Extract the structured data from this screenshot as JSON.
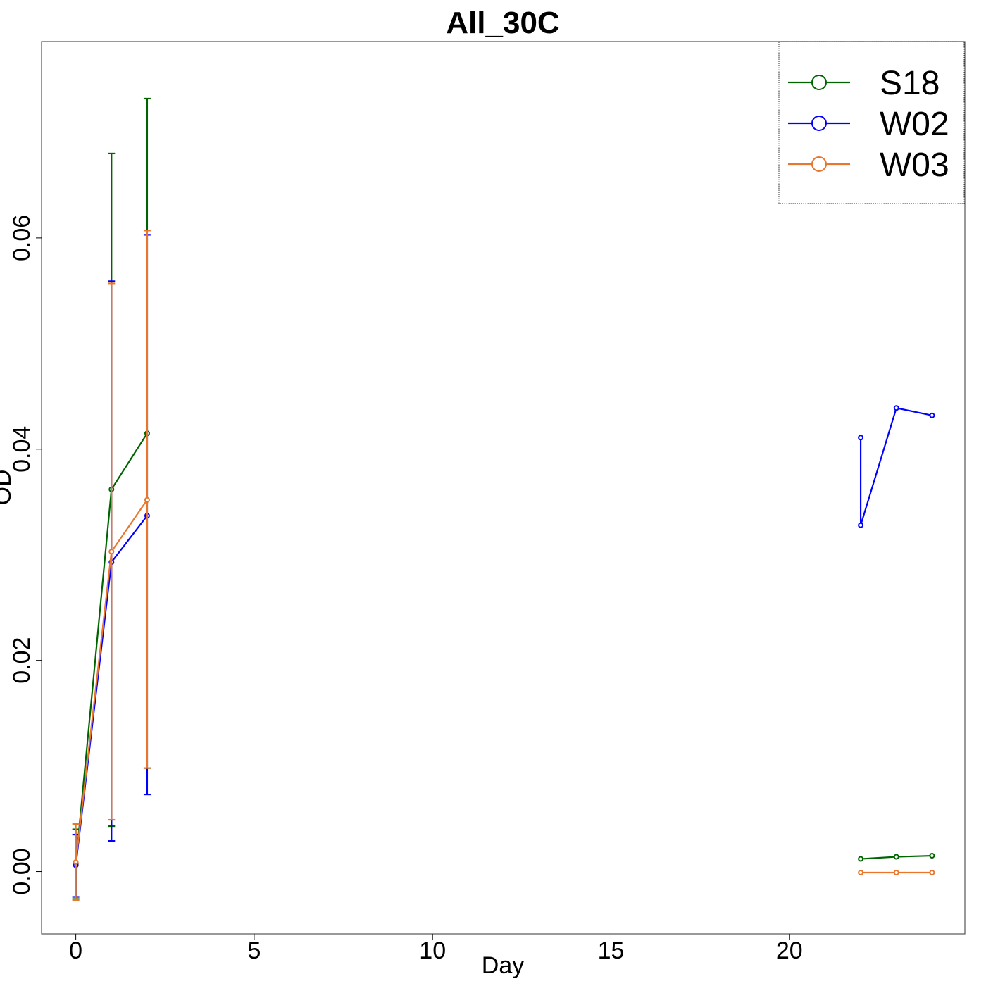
{
  "chart_data": {
    "type": "line",
    "title": "All_30C",
    "xlabel": "Day",
    "ylabel": "OD",
    "xlim": [
      -0.96,
      24.92
    ],
    "ylim": [
      -0.0059,
      0.0786
    ],
    "x_ticks": [
      0,
      5,
      10,
      15,
      20
    ],
    "y_ticks": [
      0.0,
      0.02,
      0.04,
      0.06
    ],
    "y_tick_labels": [
      "0.00",
      "0.02",
      "0.04",
      "0.06"
    ],
    "grid": false,
    "legend_position": "top-right",
    "series": [
      {
        "name": "S18",
        "color": "#006400",
        "segments": [
          {
            "points": [
              {
                "x": 0,
                "y": 0.0007,
                "err_low": -0.0026,
                "err_high": 0.004
              },
              {
                "x": 1,
                "y": 0.0362,
                "err_low": 0.0043,
                "err_high": 0.068
              },
              {
                "x": 2,
                "y": 0.0415,
                "err_low": 0.0098,
                "err_high": 0.0732
              }
            ]
          },
          {
            "points": [
              {
                "x": 22,
                "y": 0.0012
              },
              {
                "x": 23,
                "y": 0.0014
              },
              {
                "x": 24,
                "y": 0.0015
              }
            ]
          }
        ]
      },
      {
        "name": "W02",
        "color": "#0000ff",
        "segments": [
          {
            "points": [
              {
                "x": 0,
                "y": 0.0006,
                "err_low": -0.0024,
                "err_high": 0.0035
              },
              {
                "x": 1,
                "y": 0.0293,
                "err_low": 0.0029,
                "err_high": 0.0559
              },
              {
                "x": 2,
                "y": 0.0337,
                "err_low": 0.0073,
                "err_high": 0.0603
              }
            ]
          },
          {
            "points": [
              {
                "x": 22,
                "y": 0.0411
              },
              {
                "x": 22,
                "y": 0.0328
              },
              {
                "x": 23,
                "y": 0.0439
              },
              {
                "x": 24,
                "y": 0.0432
              }
            ]
          }
        ]
      },
      {
        "name": "W03",
        "color": "#e8762d",
        "segments": [
          {
            "points": [
              {
                "x": 0,
                "y": 0.0009,
                "err_low": -0.0027,
                "err_high": 0.0045
              },
              {
                "x": 1,
                "y": 0.0303,
                "err_low": 0.0049,
                "err_high": 0.0557
              },
              {
                "x": 2,
                "y": 0.0352,
                "err_low": 0.0098,
                "err_high": 0.0607
              }
            ]
          },
          {
            "points": [
              {
                "x": 22,
                "y": -0.0001
              },
              {
                "x": 23,
                "y": -0.0001
              },
              {
                "x": 24,
                "y": -0.0001
              }
            ]
          }
        ]
      }
    ]
  }
}
